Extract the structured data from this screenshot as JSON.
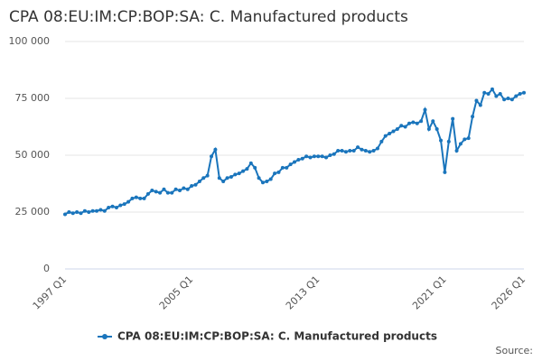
{
  "chart_data": {
    "type": "line",
    "title": "CPA 08:EU:IM:CP:BOP:SA: C. Manufactured products",
    "source": "Source:",
    "categories": [
      "1997 Q1",
      null,
      null,
      null,
      null,
      null,
      null,
      null,
      null,
      null,
      null,
      null,
      null,
      null,
      null,
      null,
      null,
      null,
      null,
      null,
      null,
      null,
      null,
      null,
      null,
      null,
      null,
      null,
      null,
      null,
      null,
      null,
      "2005 Q1",
      null,
      null,
      null,
      null,
      null,
      null,
      null,
      null,
      null,
      null,
      null,
      null,
      null,
      null,
      null,
      null,
      null,
      null,
      null,
      null,
      null,
      null,
      null,
      null,
      null,
      null,
      null,
      null,
      null,
      null,
      null,
      "2013 Q1",
      null,
      null,
      null,
      null,
      null,
      null,
      null,
      null,
      null,
      null,
      null,
      null,
      null,
      null,
      null,
      null,
      null,
      null,
      null,
      null,
      null,
      null,
      null,
      null,
      null,
      null,
      null,
      null,
      null,
      null,
      null,
      "2021 Q1",
      null,
      null,
      null,
      null,
      null,
      null,
      null,
      null,
      null,
      null,
      null,
      null,
      null,
      null,
      null,
      null,
      null,
      null,
      null,
      "2026 Q1"
    ],
    "series": [
      {
        "name": "CPA 08:EU:IM:CP:BOP:SA: C. Manufactured products",
        "color": "#1a75bc",
        "values": [
          24000,
          25000,
          24500,
          25000,
          24500,
          25500,
          25000,
          25500,
          25500,
          26000,
          25500,
          27000,
          27500,
          27000,
          28000,
          28500,
          29500,
          31000,
          31500,
          31000,
          31000,
          33000,
          34500,
          34000,
          33500,
          35000,
          33500,
          33500,
          35000,
          34500,
          35500,
          35000,
          36500,
          37000,
          38500,
          40000,
          41000,
          49500,
          52500,
          40000,
          38500,
          40000,
          40500,
          41500,
          42000,
          43000,
          44000,
          46500,
          44500,
          40000,
          38000,
          38500,
          39500,
          42000,
          42500,
          44500,
          44500,
          46000,
          47000,
          48000,
          48500,
          49500,
          49000,
          49500,
          49500,
          49500,
          49000,
          50000,
          50500,
          52000,
          52000,
          51500,
          52000,
          52000,
          53500,
          52500,
          52000,
          51500,
          52000,
          53000,
          56000,
          58500,
          59500,
          60500,
          61500,
          63000,
          62500,
          64000,
          64500,
          64000,
          65000,
          70000,
          61500,
          65000,
          61500,
          56500,
          42500,
          56000,
          66000,
          52000,
          55000,
          57000,
          57500,
          67000,
          74000,
          72000,
          77500,
          77000,
          79000,
          76000,
          77000,
          74500,
          75000,
          74500,
          76000,
          77000,
          77500
        ]
      }
    ],
    "ylim": [
      0,
      100000
    ],
    "yticks": [
      0,
      {
        "value": 25000,
        "label": "25 000"
      },
      {
        "value": 50000,
        "label": "50 000"
      },
      {
        "value": 75000,
        "label": "75 000"
      },
      {
        "value": 100000,
        "label": "100 000"
      }
    ],
    "grid": true
  }
}
